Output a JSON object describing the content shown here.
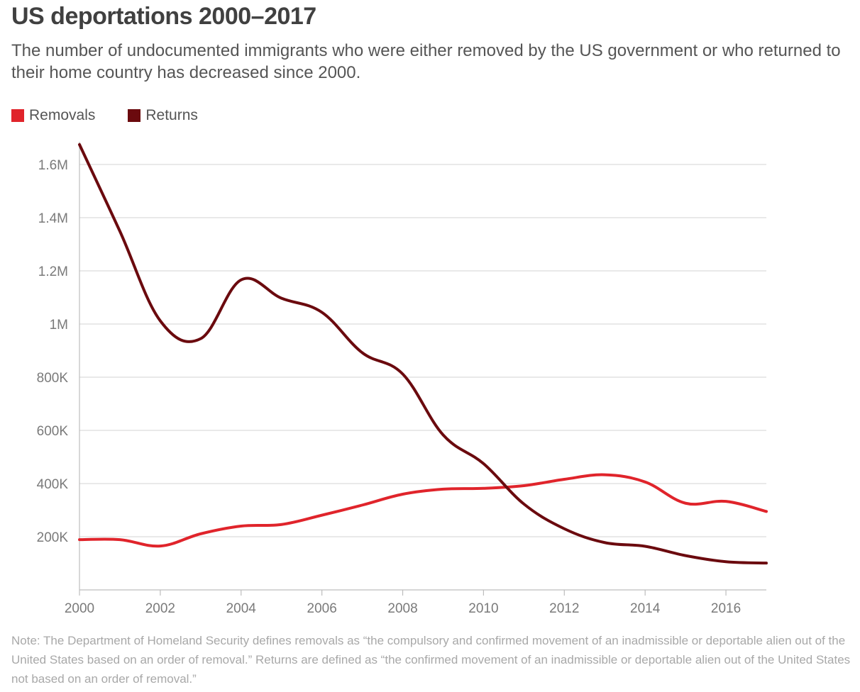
{
  "header": {
    "title": "US deportations 2000–2017",
    "subtitle": "The number of undocumented immigrants who were either removed by the US government or who returned to their home country has decreased since 2000."
  },
  "legend": {
    "items": [
      {
        "label": "Removals",
        "color": "#e0242b"
      },
      {
        "label": "Returns",
        "color": "#6b0a0e"
      }
    ]
  },
  "note": "Note: The Department of Homeland Security defines removals as “the compulsory and confirmed movement of an inadmissible or deportable alien out of the United States based on an order of removal.” Returns are defined as “the confirmed movement of an inadmissible or deportable alien out of the United States not based on an order of removal.”",
  "chart_data": {
    "type": "line",
    "x": [
      2000,
      2001,
      2002,
      2003,
      2004,
      2005,
      2006,
      2007,
      2008,
      2009,
      2010,
      2011,
      2012,
      2013,
      2014,
      2015,
      2016,
      2017
    ],
    "series": [
      {
        "name": "Removals",
        "color": "#e0242b",
        "values": [
          189000,
          189000,
          165000,
          211000,
          240000,
          246000,
          281000,
          319000,
          360000,
          379000,
          382000,
          392000,
          416000,
          433000,
          406000,
          326000,
          333000,
          295000
        ]
      },
      {
        "name": "Returns",
        "color": "#6b0a0e",
        "values": [
          1675000,
          1349000,
          1012000,
          945000,
          1166000,
          1097000,
          1044000,
          892000,
          812000,
          583000,
          475000,
          323000,
          230000,
          178000,
          164000,
          129000,
          106000,
          101000
        ]
      }
    ],
    "xticks": [
      2000,
      2002,
      2004,
      2006,
      2008,
      2010,
      2012,
      2014,
      2016
    ],
    "xtick_labels": [
      "2000",
      "2002",
      "2004",
      "2006",
      "2008",
      "2010",
      "2012",
      "2014",
      "2016"
    ],
    "yticks": [
      200000,
      400000,
      600000,
      800000,
      1000000,
      1200000,
      1400000,
      1600000
    ],
    "ytick_labels": [
      "200K",
      "400K",
      "600K",
      "800K",
      "1M",
      "1.2M",
      "1.4M",
      "1.6M"
    ],
    "xlim": [
      2000,
      2017
    ],
    "ylim": [
      0,
      1600000
    ],
    "grid": true,
    "legend_position": "top-left"
  }
}
